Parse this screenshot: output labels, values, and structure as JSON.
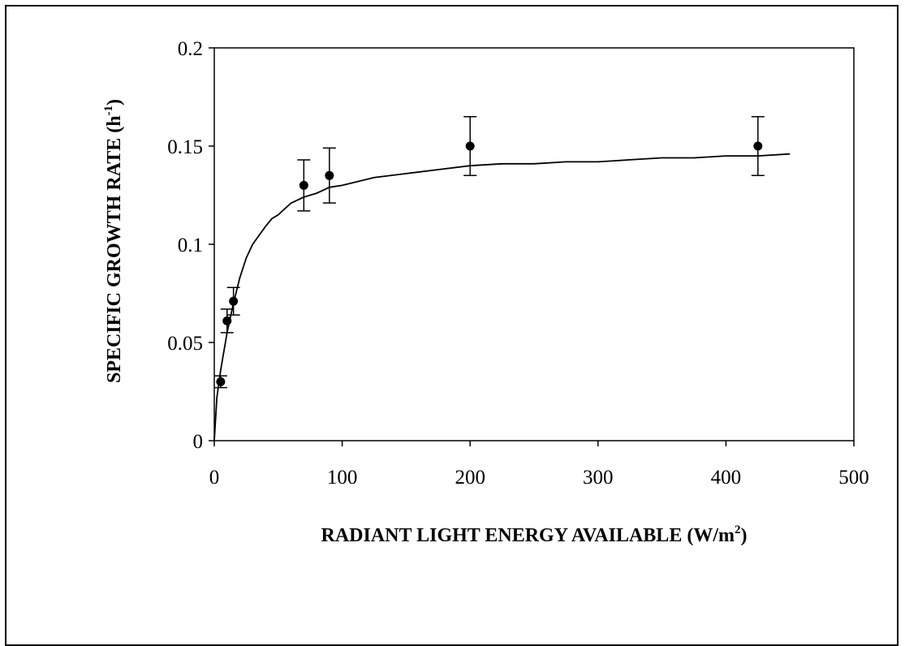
{
  "chart_data": {
    "type": "scatter",
    "xlabel": "RADIANT LIGHT ENERGY AVAILABLE (W/m",
    "xlabel_sup": "2",
    "xlabel_end": ")",
    "ylabel": "SPECIFIC GROWTH RATE (h",
    "ylabel_sup": "-1",
    "ylabel_end": ")",
    "xlim": [
      0,
      500
    ],
    "ylim": [
      0,
      0.2
    ],
    "x_ticks": [
      0,
      100,
      200,
      300,
      400,
      500
    ],
    "x_tick_labels": [
      "0",
      "100",
      "200",
      "300",
      "400",
      "500"
    ],
    "y_ticks": [
      0,
      0.05,
      0.1,
      0.15,
      0.2
    ],
    "y_tick_labels": [
      "0",
      "0.05",
      "0.1",
      "0.15",
      "0.2"
    ],
    "grid": false,
    "legend": "none",
    "points": [
      {
        "x": 5,
        "y": 0.03,
        "err": 0.003
      },
      {
        "x": 10,
        "y": 0.061,
        "err": 0.006
      },
      {
        "x": 15,
        "y": 0.071,
        "err": 0.007
      },
      {
        "x": 70,
        "y": 0.13,
        "err": 0.013
      },
      {
        "x": 90,
        "y": 0.135,
        "err": 0.014
      },
      {
        "x": 200,
        "y": 0.15,
        "err": 0.015
      },
      {
        "x": 425,
        "y": 0.15,
        "err": 0.015
      }
    ],
    "fit_curve": {
      "x": [
        0,
        2,
        5,
        10,
        15,
        20,
        25,
        30,
        40,
        45,
        50,
        55,
        60,
        70,
        80,
        90,
        100,
        125,
        150,
        175,
        200,
        225,
        250,
        275,
        300,
        325,
        350,
        375,
        400,
        425,
        450
      ],
      "y": [
        0,
        0.022,
        0.036,
        0.055,
        0.07,
        0.083,
        0.093,
        0.1,
        0.109,
        0.113,
        0.115,
        0.118,
        0.121,
        0.124,
        0.126,
        0.129,
        0.13,
        0.134,
        0.136,
        0.138,
        0.14,
        0.141,
        0.141,
        0.142,
        0.142,
        0.143,
        0.144,
        0.144,
        0.145,
        0.145,
        0.146
      ]
    },
    "colors": {
      "marks": "#000000",
      "background": "#ffffff"
    }
  }
}
